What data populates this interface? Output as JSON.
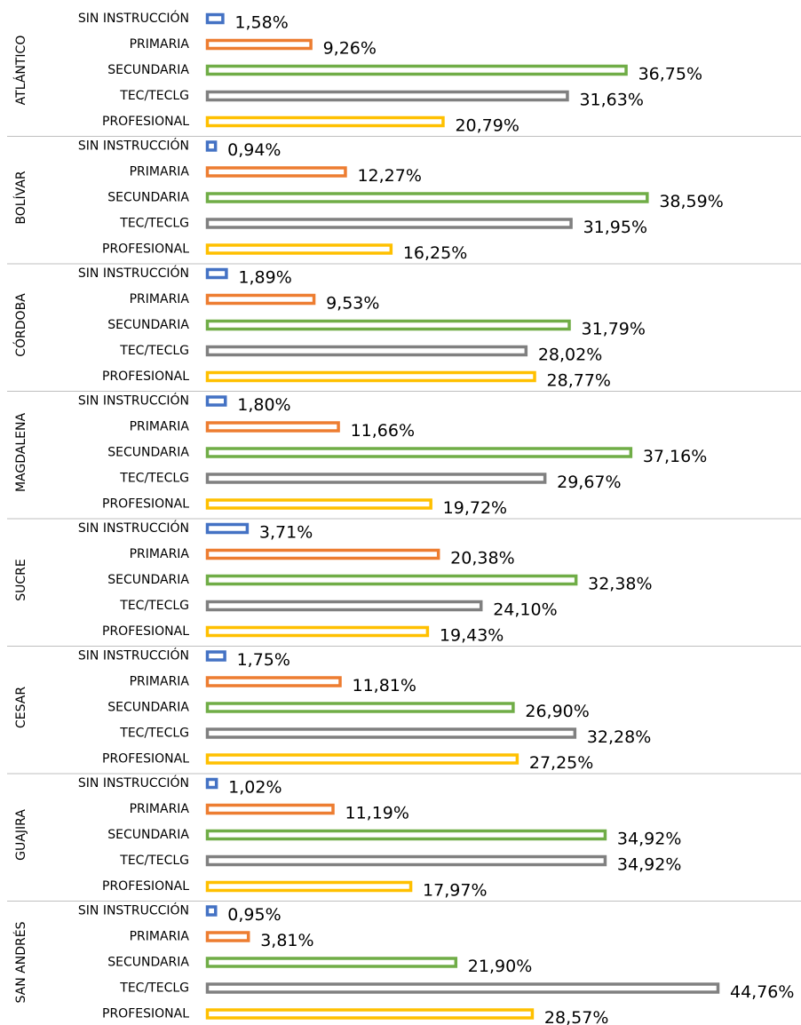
{
  "chart_data": {
    "type": "bar",
    "categories": [
      "SIN INSTRUCCIÓN",
      "PRIMARIA",
      "SECUNDARIA",
      "TEC/TECLG",
      "PROFESIONAL"
    ],
    "colors": [
      "#4472c4",
      "#ed7d31",
      "#70ad47",
      "#808080",
      "#ffc000"
    ],
    "groups": [
      {
        "name": "ATLÁNTICO",
        "values": [
          1.58,
          9.26,
          36.75,
          31.63,
          20.79
        ],
        "value_labels": [
          "1,58%",
          "9,26%",
          "36,75%",
          "31,63%",
          "20,79%"
        ]
      },
      {
        "name": "BOLÍVAR",
        "values": [
          0.94,
          12.27,
          38.59,
          31.95,
          16.25
        ],
        "value_labels": [
          "0,94%",
          "12,27%",
          "38,59%",
          "31,95%",
          "16,25%"
        ]
      },
      {
        "name": "CÓRDOBA",
        "values": [
          1.89,
          9.53,
          31.79,
          28.02,
          28.77
        ],
        "value_labels": [
          "1,89%",
          "9,53%",
          "31,79%",
          "28,02%",
          "28,77%"
        ]
      },
      {
        "name": "MAGDALENA",
        "values": [
          1.8,
          11.66,
          37.16,
          29.67,
          19.72
        ],
        "value_labels": [
          "1,80%",
          "11,66%",
          "37,16%",
          "29,67%",
          "19,72%"
        ]
      },
      {
        "name": "SUCRE",
        "values": [
          3.71,
          20.38,
          32.38,
          24.1,
          19.43
        ],
        "value_labels": [
          "3,71%",
          "20,38%",
          "32,38%",
          "24,10%",
          "19,43%"
        ]
      },
      {
        "name": "CESAR",
        "values": [
          1.75,
          11.81,
          26.9,
          32.28,
          27.25
        ],
        "value_labels": [
          "1,75%",
          "11,81%",
          "26,90%",
          "32,28%",
          "27,25%"
        ]
      },
      {
        "name": "GUAJIRA",
        "values": [
          1.02,
          11.19,
          34.92,
          34.92,
          17.97
        ],
        "value_labels": [
          "1,02%",
          "11,19%",
          "34,92%",
          "34,92%",
          "17,97%"
        ]
      },
      {
        "name": "SAN ANDRÉS",
        "values": [
          0.95,
          3.81,
          21.9,
          44.76,
          28.57
        ],
        "value_labels": [
          "0,95%",
          "3,81%",
          "21,90%",
          "44,76%",
          "28,57%"
        ]
      }
    ]
  }
}
